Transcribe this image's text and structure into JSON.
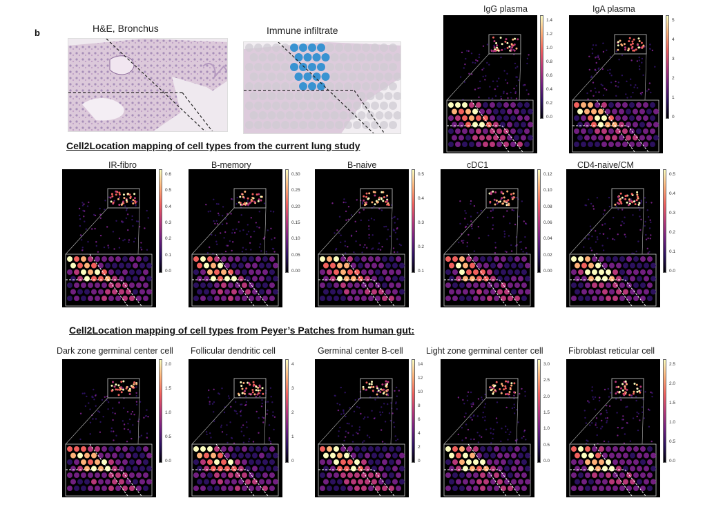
{
  "panel_label": "b",
  "histology": {
    "he_title": "H&E, Bronchus",
    "immune_title": "Immune infiltrate"
  },
  "sections": {
    "lung_title": "Cell2Location mapping of cell types from the current lung study",
    "gut_title": "Cell2Location mapping of cell types from Peyer’s Patches from human gut:"
  },
  "colormap": [
    "#000004",
    "#2c115f",
    "#721f81",
    "#b73779",
    "#f1605d",
    "#feb078",
    "#fcfdbf"
  ],
  "maps": [
    {
      "title": "IgG plasma",
      "ticks": [
        "1.4",
        "1.2",
        "1.0",
        "0.8",
        "0.6",
        "0.4",
        "0.2",
        "0.0"
      ]
    },
    {
      "title": "IgA plasma",
      "ticks": [
        "5",
        "4",
        "3",
        "2",
        "1",
        "0"
      ]
    },
    {
      "title": "IR-fibro",
      "ticks": [
        "0.6",
        "0.5",
        "0.4",
        "0.3",
        "0.2",
        "0.1",
        "0.0"
      ]
    },
    {
      "title": "B-memory",
      "ticks": [
        "0.30",
        "0.25",
        "0.20",
        "0.15",
        "0.10",
        "0.05",
        "0.00"
      ]
    },
    {
      "title": "B-naive",
      "ticks": [
        "0.5",
        "0.4",
        "0.3",
        "0.2",
        "0.1"
      ]
    },
    {
      "title": "cDC1",
      "ticks": [
        "0.12",
        "0.10",
        "0.08",
        "0.06",
        "0.04",
        "0.02",
        "0.00"
      ]
    },
    {
      "title": "CD4-naive/CM",
      "ticks": [
        "0.5",
        "0.4",
        "0.3",
        "0.2",
        "0.1",
        "0.0"
      ]
    },
    {
      "title": "Dark zone germinal center cell",
      "ticks": [
        "2.0",
        "1.5",
        "1.0",
        "0.5",
        "0.0"
      ]
    },
    {
      "title": "Follicular dendritic cell",
      "ticks": [
        "4",
        "3",
        "2",
        "1",
        "0"
      ]
    },
    {
      "title": "Germinal center B-cell",
      "ticks": [
        "14",
        "12",
        "10",
        "8",
        "6",
        "4",
        "2",
        "0"
      ]
    },
    {
      "title": "Light zone germinal center cell",
      "ticks": [
        "3.0",
        "2.5",
        "2.0",
        "1.5",
        "1.0",
        "0.5",
        "0.0"
      ]
    },
    {
      "title": "Fibroblast reticular cell",
      "ticks": [
        "2.5",
        "2.0",
        "1.5",
        "1.0",
        "0.5",
        "0.0"
      ]
    }
  ]
}
